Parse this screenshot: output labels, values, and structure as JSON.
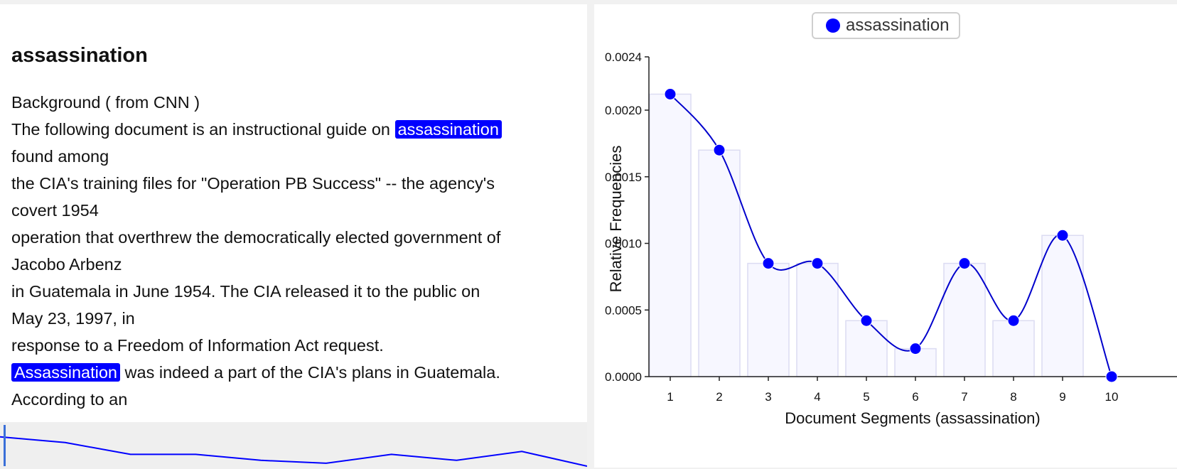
{
  "document": {
    "title": "assassination",
    "lines": [
      {
        "parts": [
          {
            "text": "Background ( from CNN )"
          }
        ]
      },
      {
        "parts": [
          {
            "text": "The following document is an instructional guide on "
          },
          {
            "text": "assassination",
            "hl": true
          }
        ]
      },
      {
        "parts": [
          {
            "text": "found among"
          }
        ]
      },
      {
        "parts": [
          {
            "text": "the CIA's training files for \"Operation PB Success\" -- the agency's"
          }
        ]
      },
      {
        "parts": [
          {
            "text": "covert 1954"
          }
        ]
      },
      {
        "parts": [
          {
            "text": "operation that overthrew the democratically elected government of"
          }
        ]
      },
      {
        "parts": [
          {
            "text": "Jacobo Arbenz"
          }
        ]
      },
      {
        "parts": [
          {
            "text": "in Guatemala in June 1954. The CIA released it to the public on"
          }
        ]
      },
      {
        "parts": [
          {
            "text": "May 23, 1997, in"
          }
        ]
      },
      {
        "parts": [
          {
            "text": "response to a Freedom of Information Act request."
          }
        ]
      },
      {
        "parts": [
          {
            "text": "Assassination",
            "hl": true
          },
          {
            "text": " was indeed a part of the CIA's plans in Guatemala."
          }
        ]
      },
      {
        "parts": [
          {
            "text": "According to an"
          }
        ]
      }
    ]
  },
  "minimap": {
    "values": [
      0.00212,
      0.0017,
      0.00085,
      0.00085,
      0.00042,
      0.00021,
      0.00085,
      0.00042,
      0.00106,
      0.0
    ]
  },
  "colors": {
    "accent": "#0000ff",
    "line": "#0000cc",
    "bar_fill": "#f7f7ff",
    "bar_stroke": "#dcdcf2"
  },
  "legend": {
    "label": "assassination",
    "icon": "circle-marker"
  },
  "chart_data": {
    "type": "bar",
    "overlay": "smooth-line",
    "categories": [
      "1",
      "2",
      "3",
      "4",
      "5",
      "6",
      "7",
      "8",
      "9",
      "10"
    ],
    "series": [
      {
        "name": "assassination",
        "values": [
          0.00212,
          0.0017,
          0.00085,
          0.00085,
          0.00042,
          0.00021,
          0.00085,
          0.00042,
          0.00106,
          0.0
        ]
      }
    ],
    "xlabel": "Document Segments (assassination)",
    "ylabel": "Relative Frequencies",
    "ylim": [
      0,
      0.0024
    ],
    "yticks": [
      "0.0000",
      "0.0005",
      "0.0010",
      "0.0015",
      "0.0020",
      "0.0024"
    ],
    "grid": false,
    "legend_position": "top-center"
  }
}
